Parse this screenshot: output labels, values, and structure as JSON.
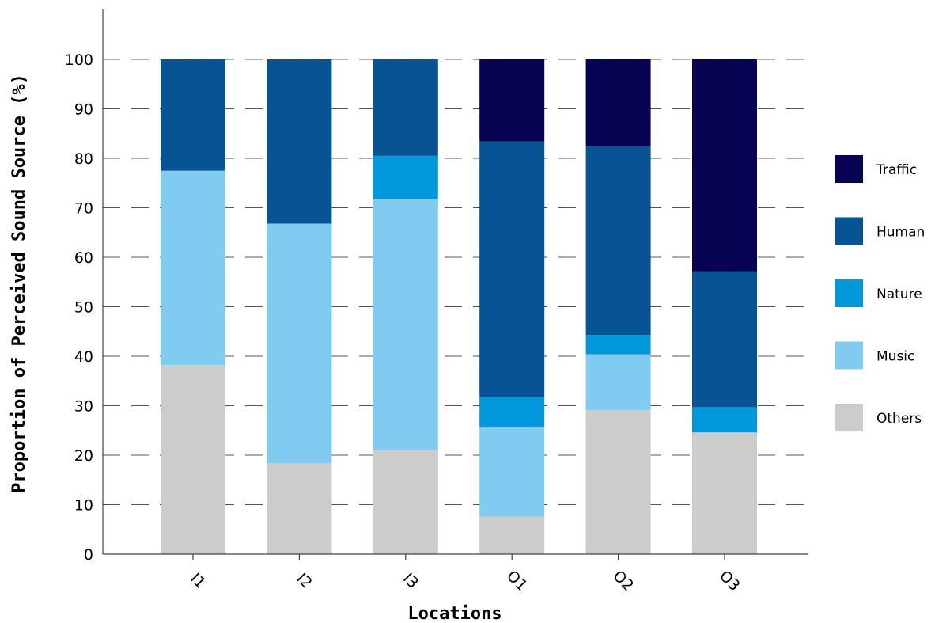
{
  "chart_data": {
    "type": "bar",
    "stacked": true,
    "title": "",
    "xlabel": "Locations",
    "ylabel": "Proportion of Perceived Sound Source (%)",
    "ylim": [
      0,
      100
    ],
    "yticks": [
      0,
      10,
      20,
      30,
      40,
      50,
      60,
      70,
      80,
      90,
      100
    ],
    "grid": "horizontal dashed",
    "legend_position": "right",
    "categories": [
      "I1",
      "I2",
      "I3",
      "O1",
      "O2",
      "O3"
    ],
    "series": [
      {
        "name": "Others",
        "color": "#cccccc",
        "values": [
          38.2,
          18.4,
          21.0,
          7.6,
          29.1,
          24.6
        ]
      },
      {
        "name": "Music",
        "color": "#80ccf1",
        "values": [
          39.3,
          48.4,
          50.8,
          18.0,
          11.3,
          0.0
        ]
      },
      {
        "name": "Nature",
        "color": "#0098db",
        "values": [
          0.0,
          0.0,
          8.7,
          6.2,
          3.9,
          5.1
        ]
      },
      {
        "name": "Human",
        "color": "#075394",
        "values": [
          22.5,
          33.2,
          19.5,
          51.6,
          38.1,
          27.5
        ]
      },
      {
        "name": "Traffic",
        "color": "#070352",
        "values": [
          0.0,
          0.0,
          0.0,
          16.6,
          17.6,
          42.8
        ]
      }
    ],
    "legend_order": [
      "Traffic",
      "Human",
      "Nature",
      "Music",
      "Others"
    ]
  }
}
